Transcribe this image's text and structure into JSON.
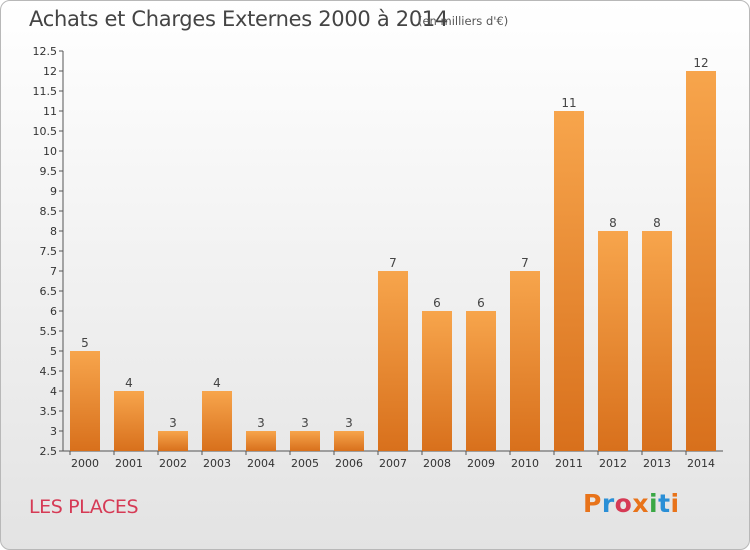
{
  "header": {
    "title": "Achats et Charges Externes 2000 à 2014",
    "subtitle": "(en milliers d'€)"
  },
  "footer": {
    "location": "LES PLACES",
    "logo_text": "Proxiti",
    "logo_colors": [
      "#e8731a",
      "#2a8fd6",
      "#d63a55",
      "#e8731a",
      "#3aa845",
      "#2a8fd6",
      "#e8731a"
    ]
  },
  "chart_data": {
    "type": "bar",
    "categories": [
      "2000",
      "2001",
      "2002",
      "2003",
      "2004",
      "2005",
      "2006",
      "2007",
      "2008",
      "2009",
      "2010",
      "2011",
      "2012",
      "2013",
      "2014"
    ],
    "values": [
      5,
      4,
      3,
      4,
      3,
      3,
      3,
      7,
      6,
      6,
      7,
      11,
      8,
      8,
      12
    ],
    "value_labels": [
      "5",
      "4",
      "3",
      "4",
      "3",
      "3",
      "3",
      "7",
      "6",
      "6",
      "7",
      "11",
      "8",
      "8",
      "12"
    ],
    "title": "Achats et Charges Externes 2000 à 2014",
    "subtitle": "(en milliers d'€)",
    "xlabel": "",
    "ylabel": "",
    "ylim": [
      2.5,
      12.5
    ],
    "yticks": [
      "2.5",
      "3",
      "3.5",
      "4",
      "4.5",
      "5",
      "5.5",
      "6",
      "6.5",
      "7",
      "7.5",
      "8",
      "8.5",
      "9",
      "9.5",
      "10",
      "10.5",
      "11",
      "11.5",
      "12",
      "12.5"
    ],
    "grid": false,
    "bar_color_top": "#f7a54c",
    "bar_color_bottom": "#d8701c"
  }
}
